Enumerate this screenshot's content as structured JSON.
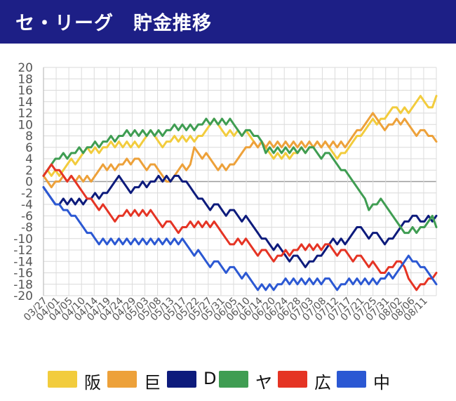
{
  "header": {
    "title": "セ・リーグ　貯金推移"
  },
  "chart_data": {
    "type": "line",
    "title": "セ・リーグ　貯金推移",
    "xlabel": "",
    "ylabel": "",
    "ylim": [
      -20,
      20
    ],
    "yticks": [
      20,
      18,
      16,
      14,
      12,
      10,
      8,
      6,
      4,
      2,
      0,
      -2,
      -4,
      -6,
      -8,
      -10,
      -12,
      -14,
      -16,
      -18,
      -20
    ],
    "x_tick_labels": [
      "03/27",
      "04/01",
      "04/05",
      "04/10",
      "04/14",
      "04/19",
      "04/24",
      "04/29",
      "05/03",
      "05/08",
      "05/13",
      "05/17",
      "05/22",
      "05/27",
      "05/31",
      "06/05",
      "06/10",
      "06/14",
      "06/20",
      "06/24",
      "06/28",
      "07/03",
      "07/08",
      "07/12",
      "07/17",
      "07/21",
      "07/25",
      "07/31",
      "08/02",
      "08/06",
      "08/11"
    ],
    "x_count": 100,
    "grid": true,
    "legend_position": "bottom",
    "series": [
      {
        "name": "阪",
        "color": "#f2cc3d",
        "keypoints": [
          [
            0,
            1
          ],
          [
            4,
            1
          ],
          [
            8,
            3
          ],
          [
            12,
            5
          ],
          [
            16,
            6
          ],
          [
            20,
            6
          ],
          [
            24,
            6
          ],
          [
            28,
            8
          ],
          [
            32,
            7
          ],
          [
            36,
            7
          ],
          [
            40,
            8
          ],
          [
            44,
            10
          ],
          [
            48,
            8
          ],
          [
            52,
            8
          ],
          [
            56,
            6
          ],
          [
            60,
            4
          ],
          [
            64,
            5
          ],
          [
            68,
            6
          ],
          [
            72,
            6
          ],
          [
            76,
            5
          ],
          [
            80,
            8
          ],
          [
            84,
            10
          ],
          [
            86,
            11
          ],
          [
            89,
            13
          ],
          [
            92,
            12
          ],
          [
            96,
            14
          ],
          [
            98,
            13
          ],
          [
            99,
            15
          ]
        ]
      },
      {
        "name": "巨",
        "color": "#eda13a",
        "keypoints": [
          [
            0,
            1
          ],
          [
            4,
            0
          ],
          [
            8,
            0
          ],
          [
            12,
            0
          ],
          [
            16,
            2
          ],
          [
            20,
            3
          ],
          [
            24,
            4
          ],
          [
            28,
            3
          ],
          [
            32,
            0
          ],
          [
            36,
            2
          ],
          [
            38,
            6
          ],
          [
            42,
            4
          ],
          [
            44,
            2
          ],
          [
            48,
            3
          ],
          [
            52,
            6
          ],
          [
            56,
            6
          ],
          [
            60,
            6
          ],
          [
            64,
            6
          ],
          [
            68,
            6
          ],
          [
            72,
            6
          ],
          [
            76,
            6
          ],
          [
            80,
            9
          ],
          [
            84,
            11
          ],
          [
            88,
            10
          ],
          [
            92,
            10
          ],
          [
            96,
            9
          ],
          [
            98,
            8
          ],
          [
            99,
            7
          ]
        ]
      },
      {
        "name": "D",
        "color": "#0d1b7c",
        "keypoints": [
          [
            0,
            -1
          ],
          [
            4,
            -4
          ],
          [
            8,
            -4
          ],
          [
            12,
            -3
          ],
          [
            16,
            -2
          ],
          [
            20,
            0
          ],
          [
            24,
            -1
          ],
          [
            28,
            0
          ],
          [
            32,
            0
          ],
          [
            34,
            1
          ],
          [
            36,
            0
          ],
          [
            40,
            -3
          ],
          [
            44,
            -4
          ],
          [
            48,
            -5
          ],
          [
            52,
            -7
          ],
          [
            56,
            -10
          ],
          [
            60,
            -12
          ],
          [
            64,
            -13
          ],
          [
            68,
            -14
          ],
          [
            70,
            -13
          ],
          [
            72,
            -11
          ],
          [
            76,
            -11
          ],
          [
            80,
            -8
          ],
          [
            84,
            -9
          ],
          [
            88,
            -10
          ],
          [
            92,
            -7
          ],
          [
            94,
            -6
          ],
          [
            96,
            -7
          ],
          [
            98,
            -7
          ],
          [
            99,
            -6
          ]
        ]
      },
      {
        "name": "ヤ",
        "color": "#3f9d52",
        "keypoints": [
          [
            0,
            1
          ],
          [
            4,
            4
          ],
          [
            8,
            5
          ],
          [
            12,
            6
          ],
          [
            16,
            7
          ],
          [
            20,
            8
          ],
          [
            24,
            8
          ],
          [
            28,
            8
          ],
          [
            32,
            9
          ],
          [
            36,
            9
          ],
          [
            40,
            10
          ],
          [
            44,
            10
          ],
          [
            48,
            10
          ],
          [
            52,
            9
          ],
          [
            54,
            8
          ],
          [
            56,
            5
          ],
          [
            60,
            5
          ],
          [
            64,
            5
          ],
          [
            68,
            6
          ],
          [
            72,
            5
          ],
          [
            76,
            2
          ],
          [
            80,
            -2
          ],
          [
            82,
            -5
          ],
          [
            84,
            -4
          ],
          [
            86,
            -4
          ],
          [
            90,
            -8
          ],
          [
            92,
            -9
          ],
          [
            94,
            -9
          ],
          [
            96,
            -8
          ],
          [
            98,
            -6
          ],
          [
            99,
            -8
          ]
        ]
      },
      {
        "name": "広",
        "color": "#e53424",
        "keypoints": [
          [
            0,
            1
          ],
          [
            2,
            3
          ],
          [
            4,
            2
          ],
          [
            6,
            0
          ],
          [
            8,
            0
          ],
          [
            12,
            -3
          ],
          [
            16,
            -5
          ],
          [
            20,
            -6
          ],
          [
            24,
            -6
          ],
          [
            28,
            -6
          ],
          [
            32,
            -7
          ],
          [
            36,
            -8
          ],
          [
            40,
            -8
          ],
          [
            44,
            -8
          ],
          [
            48,
            -11
          ],
          [
            52,
            -11
          ],
          [
            56,
            -12
          ],
          [
            60,
            -13
          ],
          [
            64,
            -12
          ],
          [
            68,
            -12
          ],
          [
            72,
            -11
          ],
          [
            76,
            -12
          ],
          [
            80,
            -13
          ],
          [
            84,
            -15
          ],
          [
            86,
            -16
          ],
          [
            88,
            -15
          ],
          [
            90,
            -14
          ],
          [
            92,
            -17
          ],
          [
            94,
            -19
          ],
          [
            96,
            -18
          ],
          [
            98,
            -17
          ],
          [
            99,
            -16
          ]
        ]
      },
      {
        "name": "中",
        "color": "#2b58d3",
        "keypoints": [
          [
            0,
            -1
          ],
          [
            2,
            -3
          ],
          [
            4,
            -4
          ],
          [
            6,
            -5
          ],
          [
            8,
            -6
          ],
          [
            12,
            -9
          ],
          [
            16,
            -11
          ],
          [
            20,
            -11
          ],
          [
            24,
            -11
          ],
          [
            28,
            -11
          ],
          [
            32,
            -11
          ],
          [
            36,
            -11
          ],
          [
            40,
            -13
          ],
          [
            44,
            -14
          ],
          [
            48,
            -15
          ],
          [
            52,
            -17
          ],
          [
            54,
            -19
          ],
          [
            56,
            -19
          ],
          [
            60,
            -18
          ],
          [
            64,
            -18
          ],
          [
            68,
            -18
          ],
          [
            72,
            -17
          ],
          [
            76,
            -18
          ],
          [
            80,
            -18
          ],
          [
            84,
            -18
          ],
          [
            86,
            -17
          ],
          [
            88,
            -17
          ],
          [
            90,
            -15
          ],
          [
            92,
            -13
          ],
          [
            94,
            -14
          ],
          [
            96,
            -15
          ],
          [
            98,
            -17
          ],
          [
            99,
            -18
          ]
        ]
      }
    ]
  },
  "legend": [
    {
      "label": "阪",
      "color": "#f2cc3d"
    },
    {
      "label": "巨",
      "color": "#eda13a"
    },
    {
      "label": "D",
      "color": "#0d1b7c"
    },
    {
      "label": "ヤ",
      "color": "#3f9d52"
    },
    {
      "label": "広",
      "color": "#e53424"
    },
    {
      "label": "中",
      "color": "#2b58d3"
    }
  ]
}
